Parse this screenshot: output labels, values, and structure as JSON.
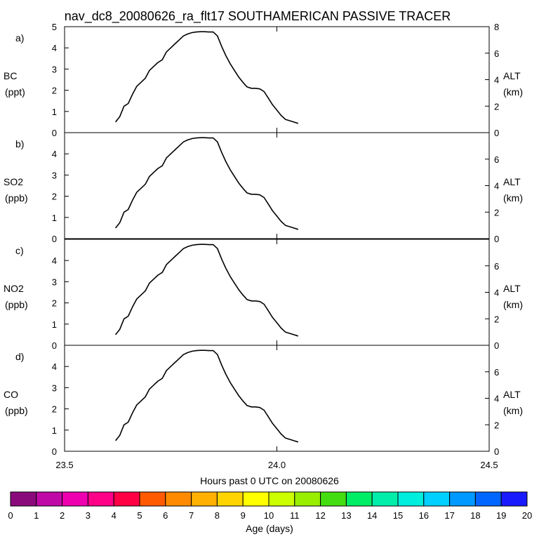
{
  "chart_data": {
    "type": "line",
    "title": "nav_dc8_20080626_ra_flt17 SOUTHAMERICAN PASSIVE TRACER",
    "xlabel": "Hours past 0 UTC on 20080626",
    "xlim": [
      23.5,
      24.5
    ],
    "xticks": [
      "23.5",
      "24.0",
      "24.5"
    ],
    "x_tick_values": [
      23.5,
      24.0,
      24.5
    ],
    "panels": [
      {
        "letter": "a)",
        "species": "BC",
        "unit": "(ppt)",
        "ylim": [
          0,
          5
        ],
        "yticks": [
          "0",
          "1",
          "2",
          "3",
          "4",
          "5"
        ]
      },
      {
        "letter": "b)",
        "species": "SO2",
        "unit": "(ppb)",
        "ylim": [
          0,
          5
        ],
        "yticks": [
          "0",
          "1",
          "2",
          "3",
          "4"
        ]
      },
      {
        "letter": "c)",
        "species": "NO2",
        "unit": "(ppb)",
        "ylim": [
          0,
          5
        ],
        "yticks": [
          "0",
          "1",
          "2",
          "3",
          "4"
        ]
      },
      {
        "letter": "d)",
        "species": "CO",
        "unit": "(ppb)",
        "ylim": [
          0,
          5
        ],
        "yticks": [
          "0",
          "1",
          "2",
          "3",
          "4"
        ]
      }
    ],
    "right_axis": {
      "label": "ALT",
      "unit": "(km)",
      "ylim": [
        0,
        8
      ],
      "yticks": [
        "0",
        "2",
        "4",
        "6",
        "8"
      ]
    },
    "altitude_series": {
      "name": "ALT (km)",
      "x": [
        23.62,
        23.63,
        23.64,
        23.645,
        23.65,
        23.66,
        23.67,
        23.68,
        23.69,
        23.7,
        23.71,
        23.72,
        23.73,
        23.74,
        23.75,
        23.76,
        23.77,
        23.78,
        23.79,
        23.8,
        23.81,
        23.82,
        23.83,
        23.84,
        23.85,
        23.86,
        23.87,
        23.88,
        23.89,
        23.9,
        23.91,
        23.92,
        23.93,
        23.94,
        23.95,
        23.96,
        23.97,
        23.98,
        23.99,
        24.0,
        24.01,
        24.02,
        24.03,
        24.04,
        24.05
      ],
      "values": [
        0.8,
        1.2,
        2.0,
        2.1,
        2.2,
        2.9,
        3.5,
        3.8,
        4.1,
        4.7,
        5.0,
        5.3,
        5.5,
        6.1,
        6.4,
        6.7,
        7.0,
        7.3,
        7.45,
        7.55,
        7.6,
        7.62,
        7.62,
        7.6,
        7.6,
        7.3,
        6.5,
        5.8,
        5.2,
        4.7,
        4.2,
        3.8,
        3.45,
        3.35,
        3.35,
        3.3,
        3.1,
        2.6,
        2.1,
        1.7,
        1.3,
        1.0,
        0.9,
        0.8,
        0.7
      ]
    },
    "colorbar": {
      "label": "Age (days)",
      "ticks": [
        "0",
        "1",
        "2",
        "3",
        "4",
        "5",
        "6",
        "7",
        "8",
        "9",
        "10",
        "11",
        "12",
        "13",
        "14",
        "15",
        "16",
        "17",
        "18",
        "19",
        "20"
      ],
      "colors": [
        "#8b0a7b",
        "#c00aa8",
        "#ee00b0",
        "#ff0088",
        "#ff0044",
        "#ff5a00",
        "#ff8a00",
        "#ffb000",
        "#ffd400",
        "#ffff00",
        "#ccff00",
        "#99ee00",
        "#44dd11",
        "#00ee66",
        "#00eeaa",
        "#00eedd",
        "#00d0ff",
        "#0099ff",
        "#0066ff",
        "#1a1aff",
        "#6611ff"
      ]
    }
  }
}
